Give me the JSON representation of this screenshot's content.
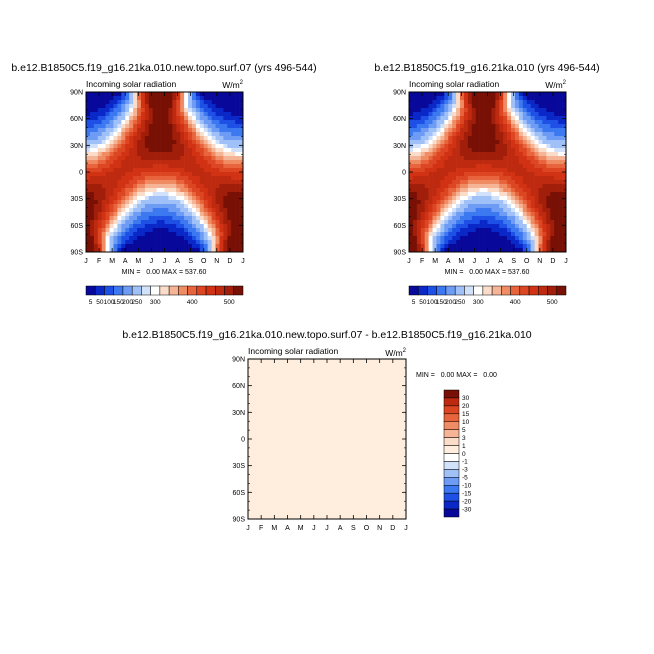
{
  "chart_data": [
    {
      "type": "heatmap",
      "title": "b.e12.B1850C5.f19_g16.21ka.010.new.topo.surf.07 (yrs 496-544)",
      "subtitle": "Incoming solar radiation",
      "units": "W/m",
      "units_sup": "2",
      "x_ticks": [
        "J",
        "F",
        "M",
        "A",
        "M",
        "J",
        "J",
        "A",
        "S",
        "O",
        "N",
        "D",
        "J"
      ],
      "y_ticks": [
        "90N",
        "60N",
        "30N",
        "0",
        "30S",
        "60S",
        "90S"
      ],
      "stats_text": "MIN =   0.00 MAX = 537.60",
      "min": 0.0,
      "max": 537.6,
      "colorbar": {
        "orientation": "horizontal",
        "levels": [
          "5",
          "50",
          "100",
          "150",
          "200",
          "250",
          "300",
          "400",
          "500"
        ]
      }
    },
    {
      "type": "heatmap",
      "title": "b.e12.B1850C5.f19_g16.21ka.010 (yrs 496-544)",
      "subtitle": "Incoming solar radiation",
      "units": "W/m",
      "units_sup": "2",
      "x_ticks": [
        "J",
        "F",
        "M",
        "A",
        "M",
        "J",
        "J",
        "A",
        "S",
        "O",
        "N",
        "D",
        "J"
      ],
      "y_ticks": [
        "90N",
        "60N",
        "30N",
        "0",
        "30S",
        "60S",
        "90S"
      ],
      "stats_text": "MIN =   0.00 MAX = 537.60",
      "min": 0.0,
      "max": 537.6,
      "colorbar": {
        "orientation": "horizontal",
        "levels": [
          "5",
          "50",
          "100",
          "150",
          "200",
          "250",
          "300",
          "400",
          "500"
        ]
      }
    },
    {
      "type": "heatmap",
      "title": "b.e12.B1850C5.f19_g16.21ka.010.new.topo.surf.07 - b.e12.B1850C5.f19_g16.21ka.010",
      "subtitle": "Incoming solar radiation",
      "units": "W/m",
      "units_sup": "2",
      "x_ticks": [
        "J",
        "F",
        "M",
        "A",
        "M",
        "J",
        "J",
        "A",
        "S",
        "O",
        "N",
        "D",
        "J"
      ],
      "y_ticks": [
        "90N",
        "60N",
        "30N",
        "0",
        "30S",
        "60S",
        "90S"
      ],
      "stats_text": "MIN =   0.00 MAX =   0.00",
      "min": 0.0,
      "max": 0.0,
      "colorbar": {
        "orientation": "vertical",
        "levels": [
          "30",
          "20",
          "15",
          "10",
          "5",
          "3",
          "1",
          "0",
          "-1",
          "-3",
          "-5",
          "-10",
          "-15",
          "-20",
          "-30"
        ]
      }
    }
  ],
  "colors": {
    "abs_palette": [
      "#08089a",
      "#0a28c8",
      "#1e50e6",
      "#3c78f0",
      "#6e9cf5",
      "#a0c0f8",
      "#d2e1fa",
      "#ffffff",
      "#fadcc8",
      "#f5b496",
      "#f08c64",
      "#e8643c",
      "#dc4623",
      "#d23214",
      "#be2a10",
      "#a01e0a",
      "#781005"
    ],
    "diff_palette": [
      "#08089a",
      "#0a28c8",
      "#1e50e6",
      "#3c78f0",
      "#6e9cf5",
      "#a0c0f8",
      "#d2e1fa",
      "#ffffff",
      "#ffeedd",
      "#fadcc8",
      "#f5b496",
      "#f08c64",
      "#e8643c",
      "#dc4623",
      "#be2a10",
      "#781005"
    ],
    "diff_fill": "#ffeedd"
  }
}
